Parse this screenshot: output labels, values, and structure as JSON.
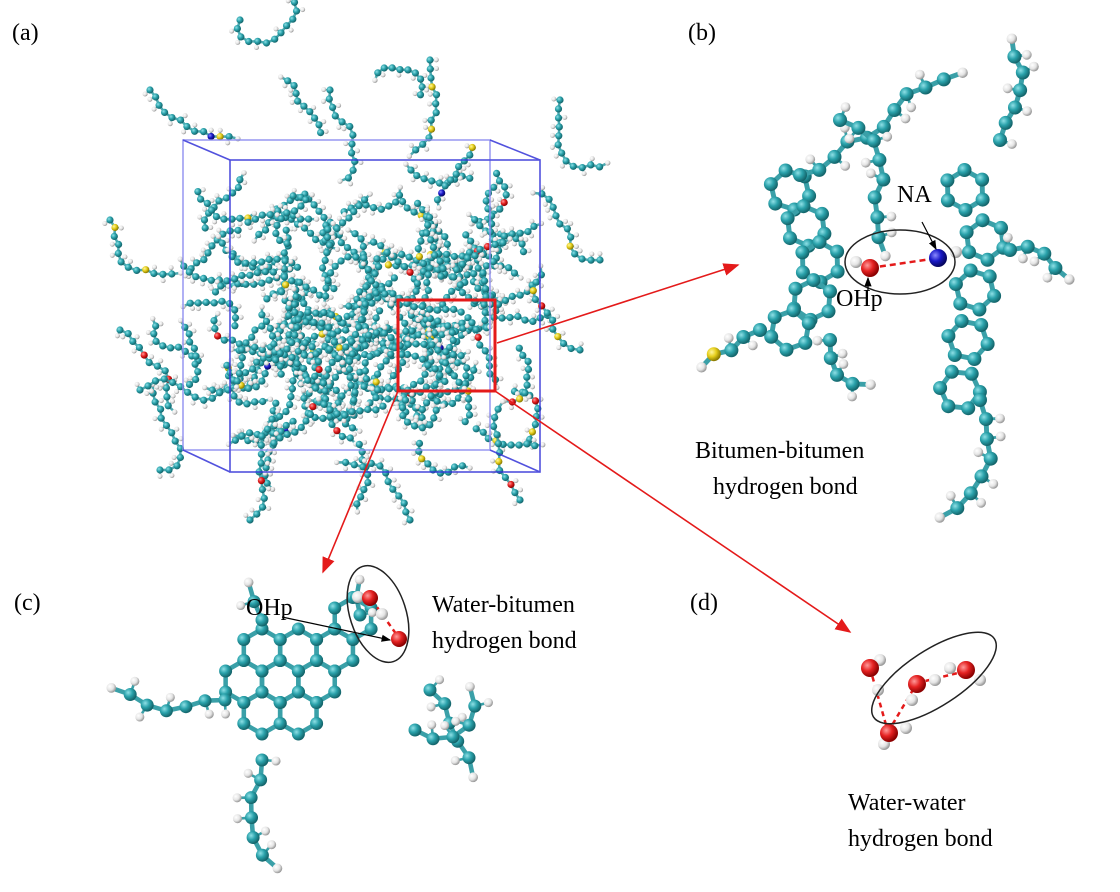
{
  "panels": [
    {
      "label": "(a)"
    },
    {
      "label": "(b)",
      "annotations": [
        "NA",
        "OHp"
      ],
      "caption": [
        "Bitumen-bitumen",
        "hydrogen bond"
      ]
    },
    {
      "label": "(c)",
      "annotations": [
        "OHp"
      ],
      "caption": [
        "Water-bitumen",
        "hydrogen bond"
      ]
    },
    {
      "label": "(d)",
      "caption": [
        "Water-water",
        "hydrogen bond"
      ]
    }
  ]
}
